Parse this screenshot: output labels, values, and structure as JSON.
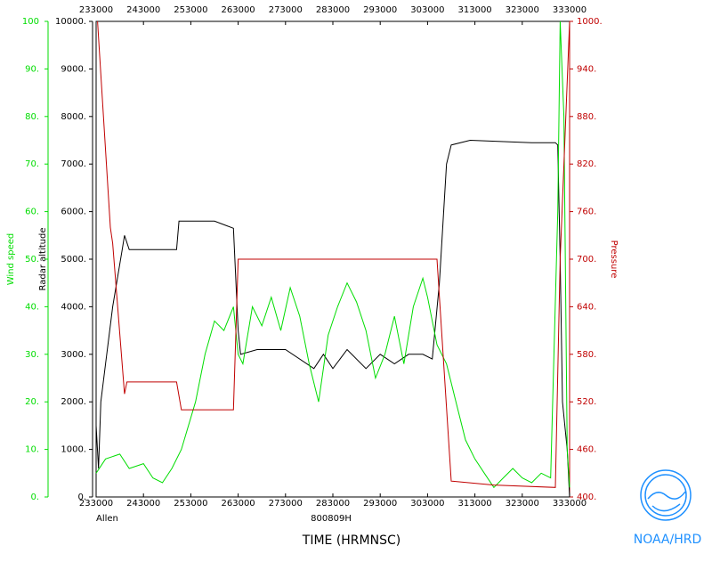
{
  "chart_data": {
    "type": "line",
    "flight": "Allen",
    "date": "800809H",
    "xlabel": "TIME (HRMNSC)",
    "ylabel": "Radar altitude",
    "y2label": "Wind speed",
    "y3label": "Pressure",
    "credit": "NOAA/HRD",
    "xlim": [
      233000,
      333000
    ],
    "xticks": [
      233000,
      243000,
      253000,
      263000,
      273000,
      283000,
      293000,
      303000,
      313000,
      323000,
      333000
    ],
    "ylim": [
      0,
      10000
    ],
    "yticks": [
      {
        "value": 0,
        "label": "0."
      },
      {
        "value": 1000,
        "label": "1000."
      },
      {
        "value": 2000,
        "label": "2000."
      },
      {
        "value": 3000,
        "label": "3000."
      },
      {
        "value": 4000,
        "label": "4000."
      },
      {
        "value": 5000,
        "label": "5000."
      },
      {
        "value": 6000,
        "label": "6000."
      },
      {
        "value": 7000,
        "label": "7000."
      },
      {
        "value": 8000,
        "label": "8000."
      },
      {
        "value": 9000,
        "label": "9000."
      },
      {
        "value": 10000,
        "label": "10000."
      }
    ],
    "y2lim": [
      0,
      100
    ],
    "y2ticks": [
      {
        "value": 0,
        "label": "0."
      },
      {
        "value": 10,
        "label": "10."
      },
      {
        "value": 20,
        "label": "20."
      },
      {
        "value": 30,
        "label": "30."
      },
      {
        "value": 40,
        "label": "40."
      },
      {
        "value": 50,
        "label": "50."
      },
      {
        "value": 60,
        "label": "60."
      },
      {
        "value": 70,
        "label": "70."
      },
      {
        "value": 80,
        "label": "80."
      },
      {
        "value": 90,
        "label": "90."
      },
      100
    ],
    "y3lim": [
      400,
      1000
    ],
    "y3ticks": [
      {
        "value": 400,
        "label": "400."
      },
      {
        "value": 460,
        "label": "460."
      },
      {
        "value": 520,
        "label": "520."
      },
      {
        "value": 580,
        "label": "580."
      },
      {
        "value": 640,
        "label": "640."
      },
      {
        "value": 700,
        "label": "700."
      },
      {
        "value": 760,
        "label": "760."
      },
      {
        "value": 820,
        "label": "820."
      },
      {
        "value": 880,
        "label": "880."
      },
      {
        "value": 940,
        "label": "940."
      },
      {
        "value": 1000,
        "label": "1000."
      }
    ],
    "series": [
      {
        "name": "Radar altitude",
        "color": "#000000",
        "axis": "y",
        "x": [
          233000,
          233500,
          234000,
          235000,
          236500,
          238500,
          239000,
          240000,
          250000,
          250500,
          258000,
          262000,
          263000,
          263500,
          267000,
          273000,
          279000,
          281000,
          283000,
          286000,
          290000,
          293000,
          296000,
          299000,
          302000,
          304000,
          305500,
          307000,
          308000,
          312000,
          325000,
          330000,
          330500,
          331000,
          331500,
          332500,
          333000
        ],
        "values": [
          1500,
          600,
          2000,
          2800,
          4000,
          5200,
          5500,
          5200,
          5200,
          5800,
          5800,
          5650,
          3500,
          3000,
          3100,
          3100,
          2700,
          3000,
          2700,
          3100,
          2700,
          3000,
          2800,
          3000,
          3000,
          2900,
          4500,
          7000,
          7400,
          7500,
          7450,
          7450,
          7400,
          5000,
          2000,
          1000,
          0
        ]
      },
      {
        "name": "Wind speed",
        "color": "#00dd00",
        "axis": "y2",
        "x": [
          233000,
          235000,
          238000,
          240000,
          243000,
          245000,
          247000,
          249000,
          251000,
          254000,
          256000,
          258000,
          260000,
          262000,
          263000,
          264000,
          266000,
          268000,
          270000,
          272000,
          274000,
          276000,
          278000,
          280000,
          282000,
          284000,
          286000,
          288000,
          290000,
          292000,
          294000,
          296000,
          298000,
          300000,
          302000,
          303000,
          305000,
          307000,
          309000,
          311000,
          313000,
          315000,
          317000,
          319000,
          321000,
          323000,
          325000,
          327000,
          329000,
          330500,
          331000,
          331800,
          332500,
          333000
        ],
        "values": [
          5,
          8,
          9,
          6,
          7,
          4,
          3,
          6,
          10,
          20,
          30,
          37,
          35,
          40,
          30,
          28,
          40,
          36,
          42,
          35,
          44,
          38,
          28,
          20,
          34,
          40,
          45,
          41,
          35,
          25,
          30,
          38,
          28,
          40,
          46,
          42,
          32,
          28,
          20,
          12,
          8,
          5,
          2,
          4,
          6,
          4,
          3,
          5,
          4,
          60,
          100,
          80,
          10,
          2
        ]
      },
      {
        "name": "Pressure",
        "color": "#c00000",
        "axis": "y3",
        "x": [
          233300,
          236000,
          236500,
          239000,
          239500,
          250000,
          251000,
          262000,
          263000,
          305000,
          308000,
          317000,
          330000,
          331000,
          333000
        ],
        "values": [
          1000,
          740,
          720,
          530,
          545,
          545,
          510,
          510,
          700,
          700,
          420,
          415,
          412,
          700,
          1000
        ]
      }
    ]
  }
}
